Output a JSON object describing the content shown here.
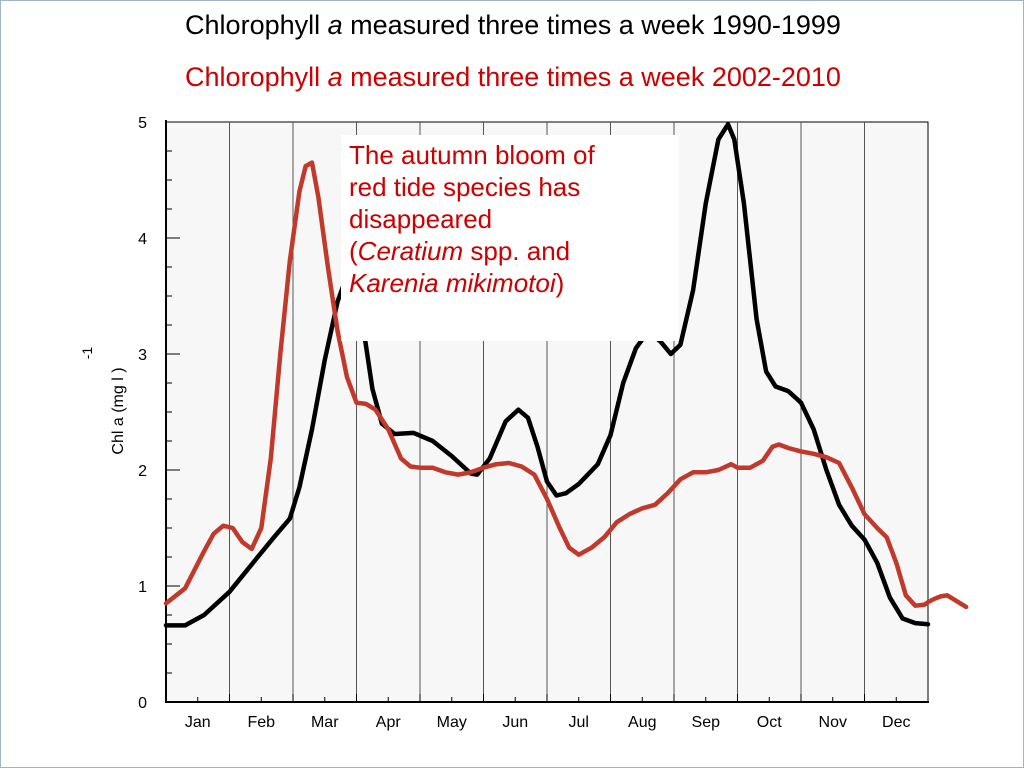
{
  "titles": [
    {
      "before": "Chlorophyll ",
      "italic": "a",
      "after": " measured three times a week 1990-1999",
      "color": "#000000"
    },
    {
      "before": "Chlorophyll ",
      "italic": "a",
      "after": " measured three times a week 2002-2010",
      "color": "#cc0000"
    }
  ],
  "annotation": {
    "line1": "The autumn bloom of",
    "line2": "red tide species has",
    "line3": "disappeared",
    "line4_open": "(",
    "line4_italic": "Ceratium",
    "line4_rest": " spp. and",
    "line5_italic": "Karenia mikimotoi",
    "line5_close": ")"
  },
  "chart_data": {
    "type": "line",
    "title": "",
    "xlabel": "",
    "ylabel": "Chl a (mg l   )",
    "ylabel_superscript": "-1",
    "ylim": [
      0,
      5
    ],
    "yticks": [
      0,
      1,
      2,
      3,
      4,
      5
    ],
    "xlim": [
      0,
      12
    ],
    "months": [
      "Jan",
      "Feb",
      "Mar",
      "Apr",
      "May",
      "Jun",
      "Jul",
      "Aug",
      "Sep",
      "Oct",
      "Nov",
      "Dec"
    ],
    "grid": "vertical month boundaries",
    "series": [
      {
        "color": "#000000",
        "points": [
          [
            0.0,
            0.66
          ],
          [
            0.3,
            0.66
          ],
          [
            0.6,
            0.75
          ],
          [
            1.0,
            0.95
          ],
          [
            1.4,
            1.22
          ],
          [
            1.7,
            1.42
          ],
          [
            1.95,
            1.58
          ],
          [
            2.1,
            1.85
          ],
          [
            2.3,
            2.35
          ],
          [
            2.5,
            2.95
          ],
          [
            2.7,
            3.45
          ],
          [
            2.8,
            3.6
          ],
          [
            2.9,
            3.65
          ],
          [
            3.0,
            3.55
          ],
          [
            3.1,
            3.25
          ],
          [
            3.25,
            2.7
          ],
          [
            3.4,
            2.4
          ],
          [
            3.6,
            2.31
          ],
          [
            3.9,
            2.32
          ],
          [
            4.2,
            2.25
          ],
          [
            4.5,
            2.12
          ],
          [
            4.8,
            1.97
          ],
          [
            4.9,
            1.96
          ],
          [
            5.1,
            2.1
          ],
          [
            5.35,
            2.42
          ],
          [
            5.55,
            2.52
          ],
          [
            5.7,
            2.45
          ],
          [
            5.85,
            2.2
          ],
          [
            6.0,
            1.9
          ],
          [
            6.15,
            1.78
          ],
          [
            6.3,
            1.8
          ],
          [
            6.5,
            1.88
          ],
          [
            6.8,
            2.05
          ],
          [
            7.0,
            2.3
          ],
          [
            7.2,
            2.75
          ],
          [
            7.4,
            3.05
          ],
          [
            7.6,
            3.2
          ],
          [
            7.8,
            3.1
          ],
          [
            7.95,
            3.0
          ],
          [
            8.1,
            3.08
          ],
          [
            8.3,
            3.55
          ],
          [
            8.5,
            4.3
          ],
          [
            8.7,
            4.85
          ],
          [
            8.85,
            4.98
          ],
          [
            8.95,
            4.85
          ],
          [
            9.1,
            4.3
          ],
          [
            9.3,
            3.3
          ],
          [
            9.45,
            2.85
          ],
          [
            9.6,
            2.72
          ],
          [
            9.8,
            2.68
          ],
          [
            10.0,
            2.58
          ],
          [
            10.2,
            2.35
          ],
          [
            10.4,
            2.0
          ],
          [
            10.6,
            1.7
          ],
          [
            10.8,
            1.52
          ],
          [
            11.0,
            1.4
          ],
          [
            11.2,
            1.2
          ],
          [
            11.4,
            0.9
          ],
          [
            11.6,
            0.72
          ],
          [
            11.8,
            0.68
          ],
          [
            12.0,
            0.67
          ]
        ]
      },
      {
        "color": "#c0392b",
        "points": [
          [
            0.0,
            0.85
          ],
          [
            0.3,
            0.98
          ],
          [
            0.6,
            1.3
          ],
          [
            0.75,
            1.45
          ],
          [
            0.9,
            1.52
          ],
          [
            1.05,
            1.5
          ],
          [
            1.2,
            1.38
          ],
          [
            1.35,
            1.32
          ],
          [
            1.5,
            1.5
          ],
          [
            1.65,
            2.1
          ],
          [
            1.8,
            3.0
          ],
          [
            1.95,
            3.8
          ],
          [
            2.1,
            4.4
          ],
          [
            2.2,
            4.62
          ],
          [
            2.3,
            4.65
          ],
          [
            2.4,
            4.35
          ],
          [
            2.55,
            3.75
          ],
          [
            2.7,
            3.2
          ],
          [
            2.85,
            2.8
          ],
          [
            3.0,
            2.58
          ],
          [
            3.15,
            2.57
          ],
          [
            3.3,
            2.52
          ],
          [
            3.5,
            2.35
          ],
          [
            3.7,
            2.1
          ],
          [
            3.85,
            2.03
          ],
          [
            4.0,
            2.02
          ],
          [
            4.2,
            2.02
          ],
          [
            4.4,
            1.98
          ],
          [
            4.6,
            1.96
          ],
          [
            4.8,
            1.98
          ],
          [
            5.0,
            2.02
          ],
          [
            5.2,
            2.05
          ],
          [
            5.4,
            2.06
          ],
          [
            5.6,
            2.03
          ],
          [
            5.8,
            1.96
          ],
          [
            6.0,
            1.75
          ],
          [
            6.2,
            1.5
          ],
          [
            6.35,
            1.33
          ],
          [
            6.5,
            1.27
          ],
          [
            6.7,
            1.33
          ],
          [
            6.9,
            1.42
          ],
          [
            7.1,
            1.55
          ],
          [
            7.3,
            1.62
          ],
          [
            7.5,
            1.67
          ],
          [
            7.7,
            1.7
          ],
          [
            7.9,
            1.8
          ],
          [
            8.1,
            1.92
          ],
          [
            8.3,
            1.98
          ],
          [
            8.5,
            1.98
          ],
          [
            8.7,
            2.0
          ],
          [
            8.9,
            2.05
          ],
          [
            9.0,
            2.02
          ],
          [
            9.2,
            2.02
          ],
          [
            9.4,
            2.08
          ],
          [
            9.55,
            2.2
          ],
          [
            9.65,
            2.22
          ],
          [
            9.8,
            2.19
          ],
          [
            10.0,
            2.16
          ],
          [
            10.2,
            2.14
          ],
          [
            10.4,
            2.11
          ],
          [
            10.6,
            2.06
          ],
          [
            10.8,
            1.85
          ],
          [
            11.0,
            1.62
          ],
          [
            11.2,
            1.5
          ],
          [
            11.35,
            1.42
          ],
          [
            11.5,
            1.2
          ],
          [
            11.65,
            0.92
          ],
          [
            11.8,
            0.83
          ],
          [
            11.95,
            0.84
          ],
          [
            12.0,
            0.86
          ],
          [
            12.1,
            0.89
          ],
          [
            12.2,
            0.91
          ],
          [
            12.3,
            0.92
          ],
          [
            12.45,
            0.87
          ],
          [
            12.6,
            0.82
          ]
        ]
      }
    ]
  }
}
